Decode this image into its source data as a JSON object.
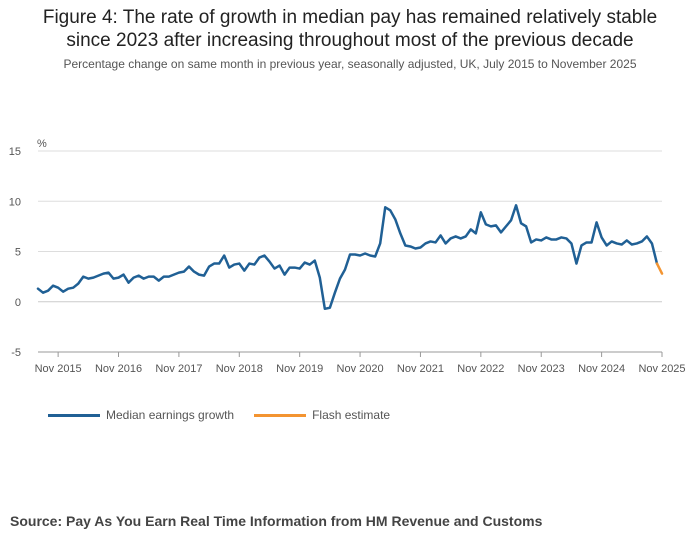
{
  "title_line1": "Figure 4: The rate of growth in median pay has remained relatively stable",
  "title_line2": "since 2023 after increasing throughout most of the previous decade",
  "subtitle": "Percentage change on same month in previous year, seasonally adjusted, UK, July 2015 to November 2025",
  "source": "Source: Pay As You Earn Real Time Information from HM Revenue and Customs",
  "colors": {
    "median": "#206095",
    "flash": "#F39431",
    "grid": "#dddddd"
  },
  "chart_data": {
    "type": "line",
    "ylabel": "%",
    "ylim": [
      -5,
      15
    ],
    "yticks": [
      -5,
      0,
      5,
      10,
      15
    ],
    "xlim": [
      "2015-07",
      "2025-11"
    ],
    "xticks": [
      "Nov 2015",
      "Nov 2016",
      "Nov 2017",
      "Nov 2018",
      "Nov 2019",
      "Nov 2020",
      "Nov 2021",
      "Nov 2022",
      "Nov 2023",
      "Nov 2024",
      "Nov 2025"
    ],
    "legend_position": "bottom-left",
    "grid": true,
    "series": [
      {
        "name": "Median earnings growth",
        "start": "2015-07",
        "values": [
          1.3,
          0.9,
          1.1,
          1.6,
          1.4,
          1.0,
          1.3,
          1.4,
          1.8,
          2.5,
          2.3,
          2.4,
          2.6,
          2.8,
          2.9,
          2.3,
          2.4,
          2.7,
          1.9,
          2.4,
          2.6,
          2.3,
          2.5,
          2.5,
          2.1,
          2.5,
          2.5,
          2.7,
          2.9,
          3.0,
          3.5,
          3.0,
          2.7,
          2.6,
          3.5,
          3.8,
          3.8,
          4.6,
          3.4,
          3.7,
          3.8,
          3.1,
          3.8,
          3.7,
          4.4,
          4.6,
          4.0,
          3.3,
          3.6,
          2.7,
          3.4,
          3.4,
          3.3,
          3.9,
          3.7,
          4.1,
          2.4,
          -0.7,
          -0.6,
          0.9,
          2.3,
          3.2,
          4.7,
          4.7,
          4.6,
          4.8,
          4.6,
          4.5,
          5.8,
          9.4,
          9.1,
          8.2,
          6.8,
          5.6,
          5.5,
          5.3,
          5.4,
          5.8,
          6.0,
          5.9,
          6.6,
          5.8,
          6.3,
          6.5,
          6.3,
          6.5,
          7.2,
          6.8,
          8.9,
          7.7,
          7.5,
          7.6,
          6.9,
          7.5,
          8.1,
          9.6,
          7.8,
          7.5,
          5.9,
          6.2,
          6.1,
          6.4,
          6.2,
          6.2,
          6.4,
          6.3,
          5.8,
          3.8,
          5.6,
          5.9,
          5.9,
          7.9,
          6.4,
          5.6,
          6.0,
          5.8,
          5.7,
          6.1,
          5.7,
          5.8,
          6.0,
          6.5,
          5.8,
          3.8
        ]
      },
      {
        "name": "Flash estimate",
        "start": "2025-10",
        "values": [
          3.8,
          2.8
        ]
      }
    ]
  }
}
